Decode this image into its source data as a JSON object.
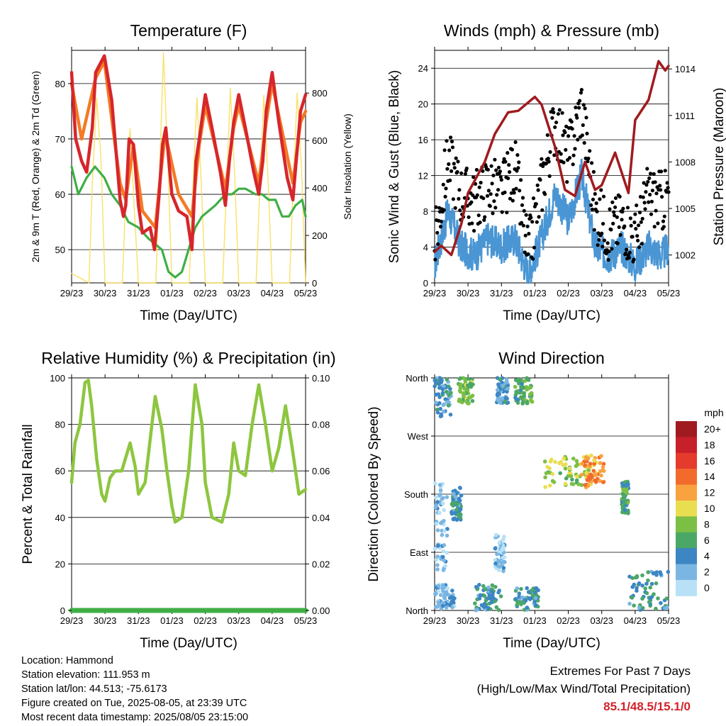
{
  "xticks": [
    "29/23",
    "30/23",
    "31/23",
    "01/23",
    "02/23",
    "03/23",
    "04/23",
    "05/23"
  ],
  "colors": {
    "temp": "#d7262b",
    "temp9m": "#f47a25",
    "dew": "#3fae45",
    "solar": "#f8de55",
    "wind": "#4a96d4",
    "gust": "#000000",
    "pressure": "#a01b1f",
    "rh": "#8dc63f",
    "precip": "#3fae45"
  },
  "chart_data": [
    {
      "type": "line",
      "title": "Temperature (F)",
      "xlabel": "Time (Day/UTC)",
      "ylabel": "2m & 9m T (Red, Orange) & 2m Td (Green)",
      "y2label": "Solar Insolation (Yellow)",
      "ylim": [
        44,
        86
      ],
      "y2lim": [
        0,
        980
      ],
      "yticks": [
        50,
        60,
        70,
        80
      ],
      "y2ticks": [
        0,
        200,
        400,
        600,
        800
      ],
      "grid": true,
      "series": [
        {
          "role": "temp-2m",
          "x": [
            0,
            0.12,
            0.3,
            0.45,
            0.62,
            0.72,
            0.98,
            1.2,
            1.45,
            1.55,
            1.62,
            1.72,
            1.85,
            2.0,
            2.12,
            2.35,
            2.48,
            2.62,
            2.72,
            2.82,
            3.0,
            3.2,
            3.45,
            3.6,
            3.72,
            3.82,
            4.0,
            4.2,
            4.45,
            4.6,
            4.72,
            4.85,
            5.0,
            5.2,
            5.45,
            5.6,
            5.72,
            5.82,
            6.0,
            6.2,
            6.45,
            6.62,
            6.72,
            6.85,
            7.0
          ],
          "y": [
            82,
            70,
            66,
            64,
            72,
            82,
            85,
            77,
            59,
            56,
            58,
            70,
            69,
            58,
            53,
            54,
            50,
            60,
            69,
            72,
            60,
            57,
            56,
            50,
            66,
            70,
            78,
            72,
            64,
            58,
            66,
            73,
            78,
            72,
            64,
            60,
            66,
            75,
            82,
            73,
            63,
            59,
            66,
            75,
            78
          ]
        },
        {
          "role": "temp-9m",
          "x": [
            0,
            0.3,
            0.72,
            0.98,
            1.45,
            1.62,
            1.85,
            2.12,
            2.5,
            2.62,
            2.8,
            3.2,
            3.6,
            3.82,
            4.0,
            4.6,
            4.85,
            5.0,
            5.6,
            5.82,
            6.0,
            6.62,
            6.85,
            7.0
          ],
          "y": [
            80,
            70,
            81,
            84,
            62,
            59,
            69,
            57,
            54,
            61,
            71,
            60,
            56,
            69,
            76,
            61,
            72,
            76,
            62,
            73,
            80,
            62,
            73,
            75
          ]
        },
        {
          "role": "dewpoint-2m",
          "x": [
            0,
            0.2,
            0.45,
            0.7,
            0.98,
            1.2,
            1.45,
            1.7,
            2.0,
            2.3,
            2.5,
            2.7,
            2.9,
            3.1,
            3.3,
            3.5,
            3.7,
            3.9,
            4.1,
            4.3,
            4.6,
            4.8,
            5.0,
            5.2,
            5.5,
            5.7,
            5.9,
            6.1,
            6.3,
            6.5,
            6.7,
            6.9,
            7.0
          ],
          "y": [
            65,
            60,
            63,
            65,
            63,
            60,
            58,
            55,
            54,
            52,
            51,
            50,
            46,
            45,
            46,
            50,
            54,
            56,
            57,
            58,
            60,
            60,
            61,
            61,
            60,
            60,
            59,
            59,
            56,
            56,
            58,
            59,
            56
          ]
        },
        {
          "role": "solar",
          "x": [
            0,
            0.52,
            0.62,
            0.75,
            0.88,
            1.0,
            1.52,
            1.62,
            1.75,
            1.88,
            2.0,
            2.52,
            2.62,
            2.75,
            2.88,
            3.0,
            3.52,
            3.62,
            3.75,
            3.88,
            4.0,
            4.52,
            4.62,
            4.75,
            4.88,
            5.0,
            5.52,
            5.62,
            5.75,
            5.88,
            6.0,
            6.52,
            6.62,
            6.75,
            6.88,
            7.0
          ],
          "y": [
            40,
            0,
            420,
            780,
            520,
            0,
            0,
            380,
            650,
            300,
            0,
            0,
            420,
            970,
            500,
            0,
            0,
            380,
            780,
            420,
            0,
            0,
            350,
            820,
            450,
            0,
            0,
            360,
            790,
            430,
            0,
            0,
            380,
            800,
            480,
            0
          ]
        }
      ]
    },
    {
      "type": "line",
      "title": "Winds (mph) & Pressure (mb)",
      "xlabel": "Time (Day/UTC)",
      "ylabel": "Sonic Wind & Gust (Blue, Black)",
      "y2label": "Station Pressure (Maroon)",
      "ylim": [
        0,
        26
      ],
      "y2lim": [
        1000.2,
        1015.2
      ],
      "yticks": [
        0,
        4,
        8,
        12,
        16,
        20,
        24
      ],
      "y2ticks": [
        1002,
        1005,
        1008,
        1011,
        1014
      ],
      "grid": true,
      "series": [
        {
          "role": "wind",
          "x": [
            0,
            0.4,
            0.8,
            1.2,
            1.6,
            2.0,
            2.4,
            2.8,
            3.2,
            3.6,
            4.0,
            4.4,
            4.8,
            5.2,
            5.6,
            6.0,
            6.4,
            6.8,
            7.0
          ],
          "y": [
            2,
            8,
            4,
            3,
            5,
            4,
            5,
            1,
            5,
            10,
            7,
            12,
            4,
            3,
            4,
            2,
            4,
            3,
            4
          ]
        },
        {
          "role": "gust",
          "x": [
            0,
            0.4,
            0.8,
            1.2,
            1.6,
            2.0,
            2.4,
            2.8,
            3.2,
            3.6,
            4.0,
            4.4,
            4.8,
            5.2,
            5.6,
            6.0,
            6.4,
            6.8,
            7.0
          ],
          "y": [
            4,
            14,
            10,
            9,
            11,
            10,
            13,
            3,
            11,
            18,
            14,
            20,
            8,
            6,
            7,
            5,
            10,
            9,
            10
          ]
        },
        {
          "role": "pressure",
          "x": [
            0,
            0.2,
            0.5,
            0.8,
            1.0,
            1.5,
            1.8,
            2.2,
            2.5,
            3.0,
            3.2,
            3.6,
            3.9,
            4.2,
            4.5,
            4.8,
            5.0,
            5.4,
            5.8,
            6.0,
            6.4,
            6.7,
            6.9,
            7.0
          ],
          "y": [
            1002.2,
            1002.6,
            1002,
            1004,
            1006,
            1008,
            1009.8,
            1011.2,
            1011.3,
            1012.2,
            1011.7,
            1009,
            1006.2,
            1005.8,
            1008,
            1006.2,
            1006.5,
            1008.6,
            1006,
            1010.7,
            1012,
            1014.5,
            1013.9,
            1014.2
          ]
        }
      ]
    },
    {
      "type": "line",
      "title": "Relative Humidity (%) & Precipitation (in)",
      "xlabel": "Time (Day/UTC)",
      "ylabel": "Percent & Total Rainfall",
      "ylim": [
        0,
        100
      ],
      "y2lim": [
        0,
        0.1
      ],
      "yticks": [
        0,
        20,
        40,
        60,
        80,
        100
      ],
      "y2ticks": [
        "0.00",
        "0.02",
        "0.04",
        "0.06",
        "0.08",
        "0.10"
      ],
      "grid": true,
      "series": [
        {
          "role": "rh",
          "x": [
            0,
            0.1,
            0.25,
            0.4,
            0.5,
            0.6,
            0.75,
            0.9,
            1.0,
            1.15,
            1.3,
            1.5,
            1.75,
            1.9,
            2.0,
            2.2,
            2.5,
            2.7,
            2.85,
            3.0,
            3.1,
            3.3,
            3.5,
            3.7,
            3.9,
            4.0,
            4.2,
            4.5,
            4.7,
            4.85,
            5.0,
            5.2,
            5.4,
            5.6,
            5.8,
            6.0,
            6.2,
            6.4,
            6.6,
            6.8,
            7.0
          ],
          "y": [
            55,
            72,
            80,
            98,
            99,
            88,
            65,
            50,
            47,
            57,
            60,
            60,
            72,
            62,
            50,
            55,
            92,
            78,
            60,
            45,
            38,
            40,
            60,
            97,
            80,
            55,
            40,
            38,
            50,
            72,
            60,
            58,
            80,
            97,
            80,
            60,
            70,
            88,
            70,
            50,
            52
          ]
        },
        {
          "role": "precipitation",
          "x": [
            0,
            7
          ],
          "y": [
            0,
            0
          ]
        }
      ]
    },
    {
      "type": "scatter",
      "title": "Wind Direction",
      "xlabel": "Time (Day/UTC)",
      "ylabel": "Direction (Colored By Speed)",
      "ylim": [
        0,
        360
      ],
      "ycategories": [
        "North",
        "East",
        "South",
        "West",
        "North"
      ],
      "grid": true,
      "clusters": [
        {
          "x0": 0.0,
          "x1": 0.5,
          "y0": 300,
          "y1": 360,
          "speed": 3
        },
        {
          "x0": 0.7,
          "x1": 1.15,
          "y0": 320,
          "y1": 360,
          "speed": 7
        },
        {
          "x0": 1.85,
          "x1": 2.2,
          "y0": 320,
          "y1": 360,
          "speed": 3
        },
        {
          "x0": 2.4,
          "x1": 2.95,
          "y0": 320,
          "y1": 360,
          "speed": 6
        },
        {
          "x0": 0.0,
          "x1": 0.6,
          "y0": 0,
          "y1": 40,
          "speed": 2
        },
        {
          "x0": 1.2,
          "x1": 2.0,
          "y0": 0,
          "y1": 40,
          "speed": 4
        },
        {
          "x0": 2.4,
          "x1": 3.1,
          "y0": 0,
          "y1": 35,
          "speed": 4
        },
        {
          "x0": 0.5,
          "x1": 0.8,
          "y0": 140,
          "y1": 190,
          "speed": 4
        },
        {
          "x0": 3.3,
          "x1": 4.7,
          "y0": 190,
          "y1": 240,
          "speed": 8
        },
        {
          "x0": 4.4,
          "x1": 5.1,
          "y0": 190,
          "y1": 240,
          "speed": 12
        },
        {
          "x0": 5.6,
          "x1": 5.8,
          "y0": 150,
          "y1": 200,
          "speed": 5
        },
        {
          "x0": 5.8,
          "x1": 7.0,
          "y0": 0,
          "y1": 60,
          "speed": 4
        },
        {
          "x0": 0.0,
          "x1": 0.4,
          "y0": 60,
          "y1": 200,
          "speed": 1
        },
        {
          "x0": 1.8,
          "x1": 2.1,
          "y0": 60,
          "y1": 120,
          "speed": 1
        }
      ],
      "colorbar": {
        "title": "mph",
        "labels": [
          "20+",
          "18",
          "16",
          "14",
          "12",
          "10",
          "8",
          "6",
          "4",
          "2",
          "0"
        ],
        "colors": [
          "#a01b1f",
          "#c7202a",
          "#e43b2c",
          "#f26b2c",
          "#f9a240",
          "#e9de50",
          "#7cbf45",
          "#4ba766",
          "#3c86c4",
          "#7bb6e2",
          "#b8e1f7"
        ]
      }
    }
  ],
  "info": {
    "location": "Location: Hammond",
    "elevation": "Station elevation: 111.953 m",
    "latlon": "Station lat/lon: 44.513; -75.6173",
    "created": "Figure created on Tue, 2025-08-05, at 23:39 UTC",
    "recent": "Most recent data timestamp: 2025/08/05 23:15:00"
  },
  "extremes": {
    "title": "Extremes For Past 7 Days",
    "subtitle": "(High/Low/Max Wind/Total Precipitation)",
    "value": "85.1/48.5/15.1/0"
  }
}
